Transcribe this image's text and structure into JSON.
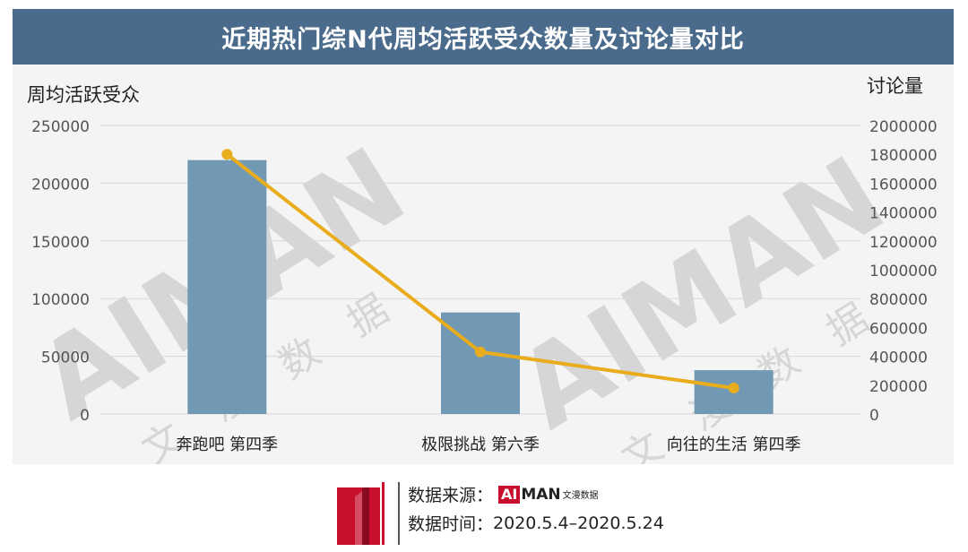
{
  "header": {
    "title": "近期热门综N代周均活跃受众数量及讨论量对比"
  },
  "chart_data": {
    "type": "bar",
    "categories": [
      "奔跑吧 第四季",
      "极限挑战 第六季",
      "向往的生活 第四季"
    ],
    "series": [
      {
        "type": "bar",
        "axis": "left",
        "values": [
          220000,
          88000,
          38000
        ],
        "color": "#7199b3"
      },
      {
        "type": "line",
        "axis": "right",
        "values": [
          1800000,
          430000,
          180000
        ],
        "color": "#e8ac1d"
      }
    ],
    "ylabel": "周均活跃受众",
    "y2label": "讨论量",
    "ylim": [
      0,
      250000
    ],
    "y2lim": [
      0,
      2000000
    ],
    "yticks": [
      "250000",
      "200000",
      "150000",
      "100000",
      "50000",
      "0"
    ],
    "y2ticks": [
      "2000000",
      "1800000",
      "1600000",
      "1400000",
      "1200000",
      "1000000",
      "800000",
      "600000",
      "400000",
      "200000",
      "0"
    ],
    "grid": true,
    "watermark": [
      "AIMAN",
      "文",
      "漫",
      "数",
      "据"
    ]
  },
  "footer": {
    "source_label": "数据来源：",
    "brand_ai": "AI",
    "brand_man": "MAN",
    "brand_cn": "文漫数据",
    "time_label": "数据时间：",
    "time_value": "2020.5.4–2020.5.24"
  }
}
